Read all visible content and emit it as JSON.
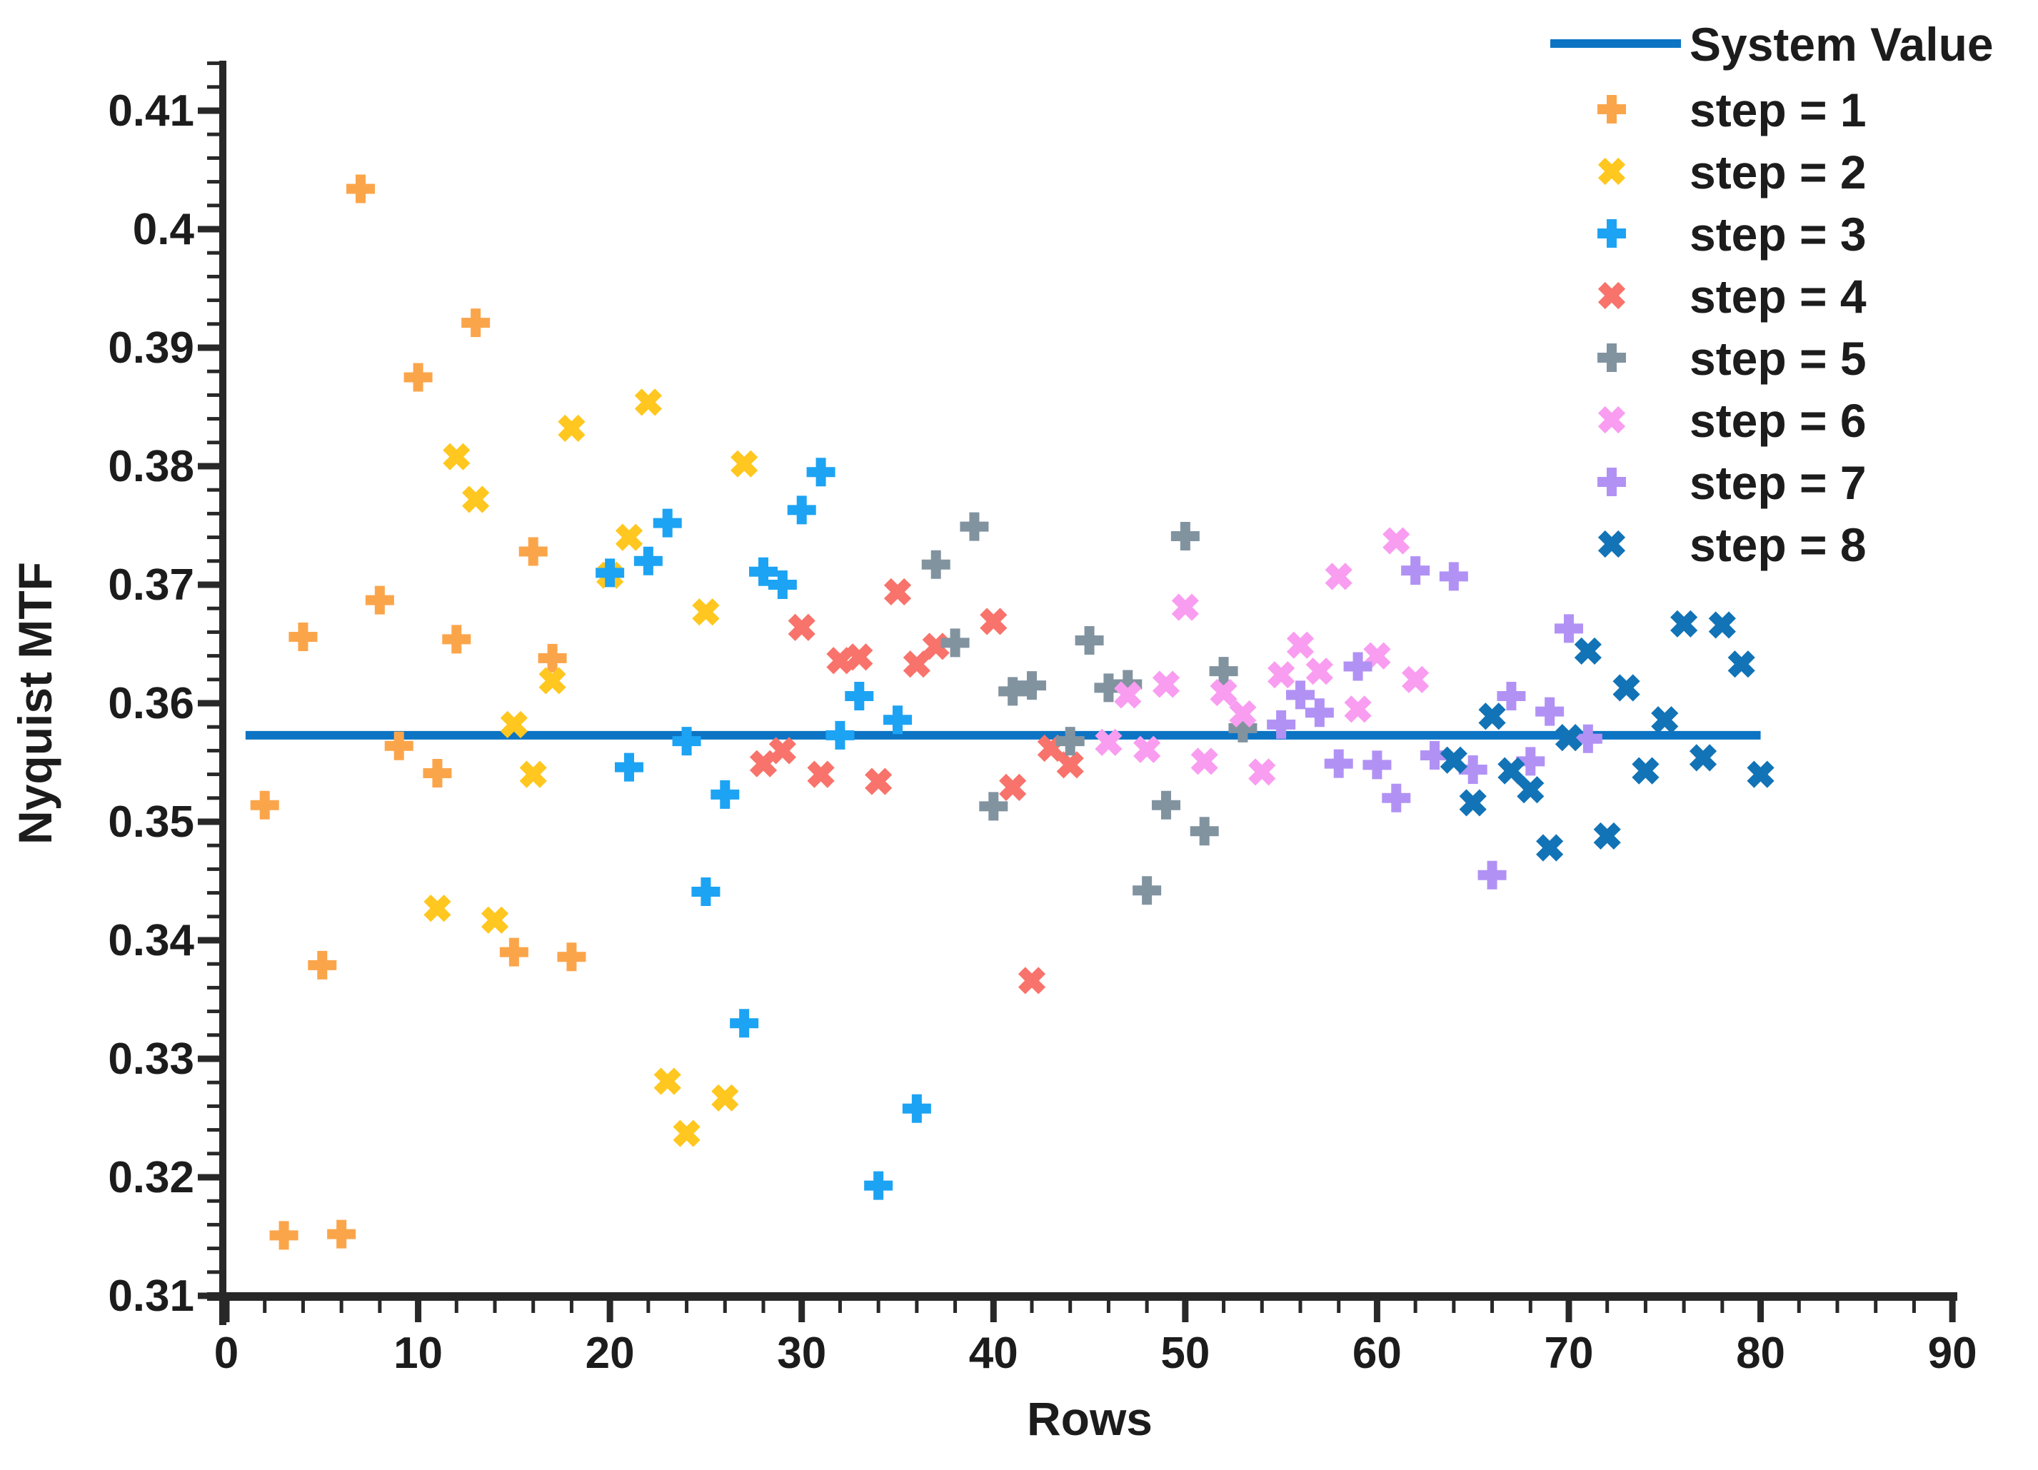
{
  "chart_data": {
    "type": "scatter",
    "title": "",
    "xlabel": "Rows",
    "ylabel": "Nyquist MTF",
    "xlim": [
      0,
      90
    ],
    "ylim": [
      0.31,
      0.41
    ],
    "grid": false,
    "legend_position": "top-right",
    "x_tick_labels": [
      "0",
      "10",
      "20",
      "30",
      "40",
      "50",
      "60",
      "70",
      "80",
      "90"
    ],
    "x_major_step": 10,
    "x_minor_step": 2,
    "y_tick_labels": [
      "0.31",
      "0.32",
      "0.33",
      "0.34",
      "0.35",
      "0.36",
      "0.37",
      "0.38",
      "0.39",
      "0.4",
      "0.41"
    ],
    "y_major_step": 0.01,
    "y_minor_step": 0.002,
    "axis_color": "#282828",
    "text_color": "#1c1c1c",
    "system_value": {
      "label": "System Value",
      "value": 0.3573,
      "x_span": [
        1,
        80
      ],
      "color": "#0D74C4"
    },
    "series": [
      {
        "name": "step = 1",
        "marker": "plus",
        "color": "#FBA54B",
        "points": [
          [
            2,
            0.3514
          ],
          [
            3,
            0.3151
          ],
          [
            4,
            0.3656
          ],
          [
            5,
            0.3379
          ],
          [
            6,
            0.3152
          ],
          [
            7,
            0.4034
          ],
          [
            8,
            0.3687
          ],
          [
            9,
            0.3564
          ],
          [
            10,
            0.3875
          ],
          [
            11,
            0.3541
          ],
          [
            12,
            0.3654
          ],
          [
            13,
            0.3921
          ],
          [
            15,
            0.339
          ],
          [
            16,
            0.3728
          ],
          [
            17,
            0.3638
          ],
          [
            18,
            0.3386
          ]
        ]
      },
      {
        "name": "step = 2",
        "marker": "x",
        "color": "#FFC71F",
        "points": [
          [
            11,
            0.3427
          ],
          [
            12,
            0.3808
          ],
          [
            13,
            0.3772
          ],
          [
            14,
            0.3417
          ],
          [
            15,
            0.3582
          ],
          [
            16,
            0.354
          ],
          [
            17,
            0.3619
          ],
          [
            18,
            0.3832
          ],
          [
            20,
            0.3708
          ],
          [
            21,
            0.374
          ],
          [
            22,
            0.3854
          ],
          [
            23,
            0.3281
          ],
          [
            24,
            0.3237
          ],
          [
            25,
            0.3677
          ],
          [
            26,
            0.3267
          ],
          [
            27,
            0.3802
          ]
        ]
      },
      {
        "name": "step = 3",
        "marker": "plus",
        "color": "#1DA3F3",
        "points": [
          [
            20,
            0.371
          ],
          [
            21,
            0.3546
          ],
          [
            22,
            0.372
          ],
          [
            23,
            0.3752
          ],
          [
            24,
            0.3568
          ],
          [
            25,
            0.3441
          ],
          [
            26,
            0.3523
          ],
          [
            27,
            0.333
          ],
          [
            28,
            0.3711
          ],
          [
            29,
            0.37
          ],
          [
            30,
            0.3763
          ],
          [
            31,
            0.3795
          ],
          [
            32,
            0.3573
          ],
          [
            33,
            0.3606
          ],
          [
            34,
            0.3193
          ],
          [
            35,
            0.3586
          ],
          [
            36,
            0.3258
          ]
        ]
      },
      {
        "name": "step = 4",
        "marker": "x",
        "color": "#F8736B",
        "points": [
          [
            28,
            0.3549
          ],
          [
            29,
            0.356
          ],
          [
            30,
            0.3664
          ],
          [
            31,
            0.354
          ],
          [
            32,
            0.3636
          ],
          [
            33,
            0.3639
          ],
          [
            34,
            0.3534
          ],
          [
            35,
            0.3694
          ],
          [
            36,
            0.3633
          ],
          [
            37,
            0.3648
          ],
          [
            40,
            0.3669
          ],
          [
            41,
            0.3529
          ],
          [
            42,
            0.3366
          ],
          [
            43,
            0.3562
          ],
          [
            44,
            0.3548
          ]
        ]
      },
      {
        "name": "step = 5",
        "marker": "plus",
        "color": "#8293A0",
        "points": [
          [
            37,
            0.3717
          ],
          [
            38,
            0.3651
          ],
          [
            39,
            0.3749
          ],
          [
            40,
            0.3513
          ],
          [
            41,
            0.361
          ],
          [
            42,
            0.3615
          ],
          [
            44,
            0.3568
          ],
          [
            45,
            0.3653
          ],
          [
            46,
            0.3613
          ],
          [
            47,
            0.3616
          ],
          [
            48,
            0.3442
          ],
          [
            49,
            0.3514
          ],
          [
            50,
            0.3741
          ],
          [
            51,
            0.3492
          ],
          [
            52,
            0.3627
          ],
          [
            53,
            0.3579
          ]
        ]
      },
      {
        "name": "step = 6",
        "marker": "x",
        "color": "#F99DF1",
        "points": [
          [
            46,
            0.3567
          ],
          [
            47,
            0.3607
          ],
          [
            48,
            0.3561
          ],
          [
            49,
            0.3616
          ],
          [
            50,
            0.3681
          ],
          [
            51,
            0.3551
          ],
          [
            52,
            0.3609
          ],
          [
            53,
            0.3591
          ],
          [
            54,
            0.3542
          ],
          [
            55,
            0.3624
          ],
          [
            56,
            0.3649
          ],
          [
            57,
            0.3627
          ],
          [
            58,
            0.3707
          ],
          [
            59,
            0.3595
          ],
          [
            60,
            0.364
          ],
          [
            61,
            0.3737
          ],
          [
            62,
            0.362
          ]
        ]
      },
      {
        "name": "step = 7",
        "marker": "plus",
        "color": "#B192F4",
        "points": [
          [
            55,
            0.3582
          ],
          [
            56,
            0.3607
          ],
          [
            57,
            0.3592
          ],
          [
            58,
            0.3549
          ],
          [
            59,
            0.3631
          ],
          [
            60,
            0.3548
          ],
          [
            61,
            0.352
          ],
          [
            62,
            0.3712
          ],
          [
            63,
            0.3556
          ],
          [
            64,
            0.3707
          ],
          [
            65,
            0.3544
          ],
          [
            66,
            0.3455
          ],
          [
            67,
            0.3606
          ],
          [
            68,
            0.3551
          ],
          [
            69,
            0.3593
          ],
          [
            70,
            0.3663
          ],
          [
            71,
            0.357
          ]
        ]
      },
      {
        "name": "step = 8",
        "marker": "x",
        "color": "#1273B6",
        "points": [
          [
            64,
            0.3552
          ],
          [
            65,
            0.3516
          ],
          [
            66,
            0.3589
          ],
          [
            67,
            0.3543
          ],
          [
            68,
            0.3527
          ],
          [
            69,
            0.3478
          ],
          [
            70,
            0.3571
          ],
          [
            71,
            0.3644
          ],
          [
            72,
            0.3488
          ],
          [
            73,
            0.3613
          ],
          [
            74,
            0.3543
          ],
          [
            75,
            0.3586
          ],
          [
            76,
            0.3667
          ],
          [
            77,
            0.3554
          ],
          [
            78,
            0.3666
          ],
          [
            79,
            0.3633
          ],
          [
            80,
            0.354
          ]
        ]
      }
    ]
  }
}
